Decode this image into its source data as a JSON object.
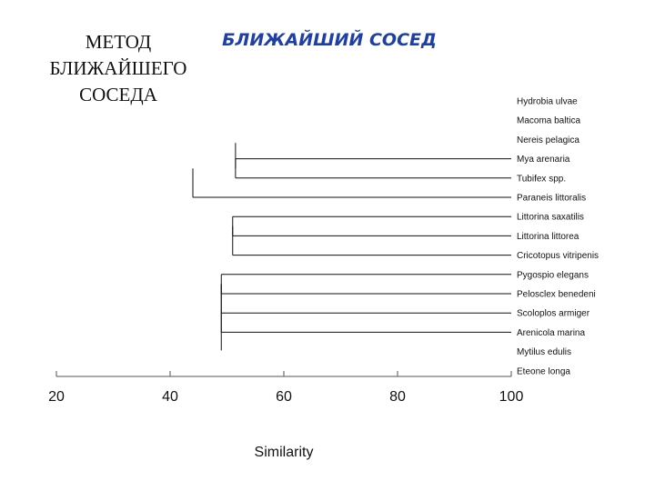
{
  "slide": {
    "title_lines": [
      "МЕТОД",
      "БЛИЖАЙШЕГО",
      "СОСЕДА"
    ]
  },
  "chart_data": {
    "type": "dendrogram",
    "title": "БЛИЖАЙШИЙ СОСЕД",
    "title_color": "#1f3fa8",
    "line_color": "#111111",
    "xlabel": "Similarity",
    "xlim": [
      20,
      100
    ],
    "xticks": [
      20,
      40,
      60,
      80,
      100
    ],
    "leaves": [
      "Hydrobia ulvae",
      "Macoma baltica",
      "Nereis pelagica",
      "Mya arenaria",
      "Tubifex spp.",
      "Paraneis littoralis",
      "Littorina saxatilis",
      "Littorina littorea",
      "Cricotopus vitripenis",
      "Pygospio elegans",
      "Pelosclex benedeni",
      "Scoloplos armiger",
      "Arenicola marina",
      "Mytilus edulis",
      "Eteone longa"
    ],
    "merges": [
      {
        "leaves": [
          3,
          4
        ],
        "similarity": 51.5
      },
      {
        "leaves": [
          5
        ],
        "similarity": 44
      },
      {
        "leaves": [
          6,
          7
        ],
        "similarity": 51
      },
      {
        "leaves": [
          8
        ],
        "similarity": 51
      },
      {
        "leaves": [
          9,
          10
        ],
        "similarity": 49
      },
      {
        "leaves": [
          11
        ],
        "similarity": 49
      },
      {
        "leaves": [
          12
        ],
        "similarity": 49
      }
    ]
  }
}
